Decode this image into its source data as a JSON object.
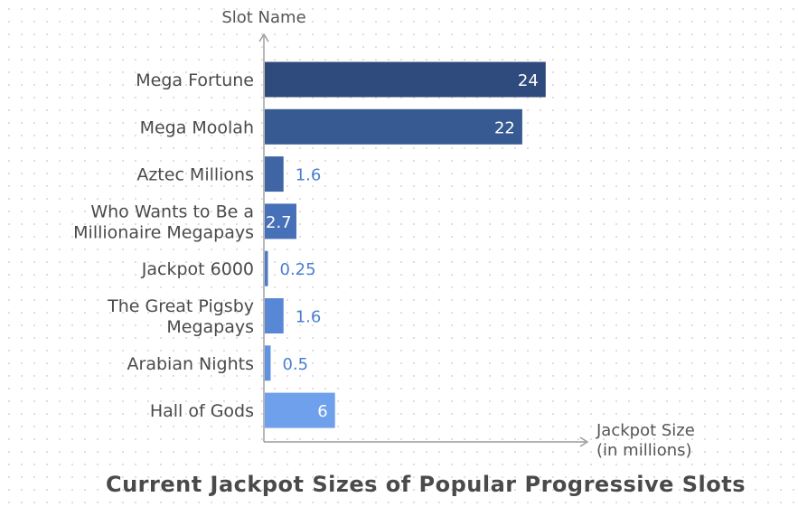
{
  "chart_data": {
    "type": "bar",
    "orientation": "horizontal",
    "title": "Current Jackpot Sizes of Popular Progressive Slots",
    "ylabel": "Slot Name",
    "xlabel_lines": [
      "Jackpot Size",
      "(in millions)"
    ],
    "xlim": [
      0,
      30
    ],
    "grid": false,
    "categories": [
      {
        "lines": [
          "Mega Fortune"
        ]
      },
      {
        "lines": [
          "Mega Moolah"
        ]
      },
      {
        "lines": [
          "Aztec Millions"
        ]
      },
      {
        "lines": [
          "Who Wants to Be a",
          "Millionaire Megapays"
        ]
      },
      {
        "lines": [
          "Jackpot 6000"
        ]
      },
      {
        "lines": [
          "The Great Pigsby",
          "Megapays"
        ]
      },
      {
        "lines": [
          "Arabian Nights"
        ]
      },
      {
        "lines": [
          "Hall of Gods"
        ]
      }
    ],
    "values": [
      24,
      22,
      1.6,
      2.7,
      0.25,
      1.6,
      0.5,
      6
    ],
    "value_labels": [
      "24",
      "22",
      "1.6",
      "2.7",
      "0.25",
      "1.6",
      "0.5",
      "6"
    ],
    "bar_colors": [
      "#2f4a7c",
      "#375a92",
      "#3f65a5",
      "#4670b8",
      "#4e7bc6",
      "#5887d5",
      "#6393e0",
      "#6ea0ec"
    ],
    "axis_color": "#9a9a9a",
    "label_inside_color": "#ffffff",
    "label_outside_color": "#4a7fd0"
  }
}
